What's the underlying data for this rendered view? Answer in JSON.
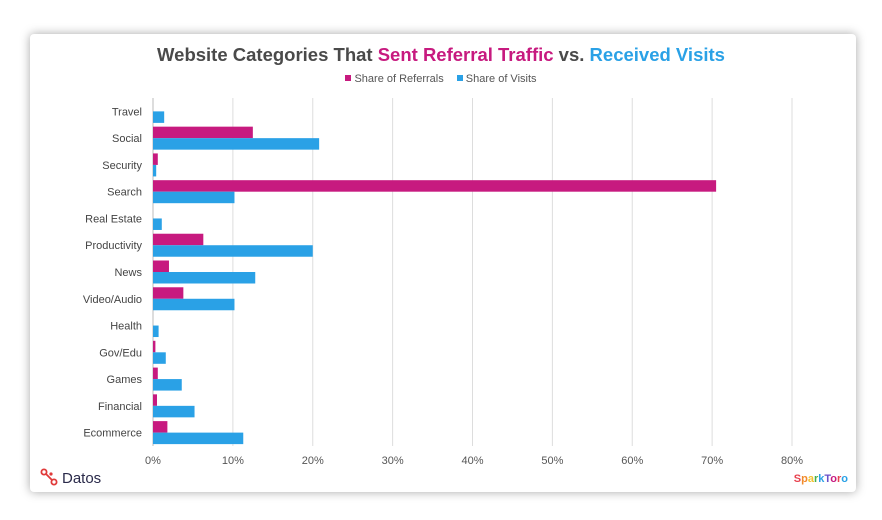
{
  "title": {
    "part1": "Website Categories That ",
    "part2": "Sent Referral Traffic",
    "part3": " vs. ",
    "part4": "Received Visits"
  },
  "legend": {
    "referrals": "Share of Referrals",
    "visits": "Share of Visits"
  },
  "colors": {
    "referrals": "#c71a7f",
    "visits": "#2aa1e6",
    "title_text": "#4a4a4a",
    "grid": "#dddddd"
  },
  "branding": {
    "datos": "Datos",
    "sparktoro": "SparkToro",
    "datos_icon": "datos-logo-icon"
  },
  "chart_data": {
    "type": "bar",
    "orientation": "horizontal",
    "categories": [
      "Travel",
      "Social",
      "Security",
      "Search",
      "Real Estate",
      "Productivity",
      "News",
      "Video/Audio",
      "Health",
      "Gov/Edu",
      "Games",
      "Financial",
      "Ecommerce"
    ],
    "series": [
      {
        "name": "Share of Referrals",
        "values": [
          0,
          12.5,
          0.6,
          70.5,
          0,
          6.3,
          2.0,
          3.8,
          0,
          0.3,
          0.6,
          0.5,
          1.8
        ]
      },
      {
        "name": "Share of Visits",
        "values": [
          1.4,
          20.8,
          0.4,
          10.2,
          1.1,
          20.0,
          12.8,
          10.2,
          0.7,
          1.6,
          3.6,
          5.2,
          11.3
        ]
      }
    ],
    "xlim": [
      0,
      80
    ],
    "xticks": [
      "0%",
      "10%",
      "20%",
      "30%",
      "40%",
      "50%",
      "60%",
      "70%",
      "80%"
    ],
    "grid": "vertical",
    "legend_position": "top"
  }
}
